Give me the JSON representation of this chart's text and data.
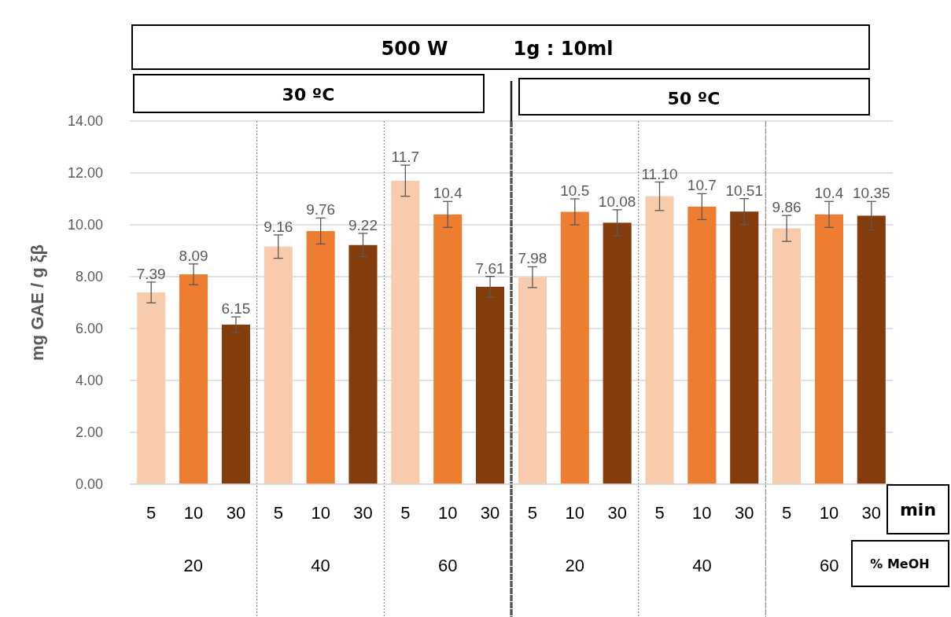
{
  "chart_data": {
    "type": "bar",
    "ylabel": "mg GAE / g ξβ",
    "categories": [
      "5",
      "10",
      "30",
      "5",
      "10",
      "30",
      "5",
      "10",
      "30",
      "5",
      "10",
      "30",
      "5",
      "10",
      "30",
      "5",
      "10",
      "30"
    ],
    "values": [
      7.39,
      8.09,
      6.15,
      9.16,
      9.76,
      9.22,
      11.7,
      10.4,
      7.61,
      7.98,
      10.5,
      10.08,
      11.1,
      10.7,
      10.51,
      9.86,
      10.4,
      10.35
    ],
    "colors": [
      "#f8cbad",
      "#ed7d31",
      "#843c0c",
      "#f8cbad",
      "#ed7d31",
      "#843c0c",
      "#f8cbad",
      "#ed7d31",
      "#843c0c",
      "#f8cbad",
      "#ed7d31",
      "#843c0c",
      "#f8cbad",
      "#ed7d31",
      "#843c0c",
      "#f8cbad",
      "#ed7d31",
      "#843c0c"
    ],
    "value_labels": [
      "7.39",
      "8.09",
      "6.15",
      "9.16",
      "9.76",
      "9.22",
      "11.7",
      "10.4",
      "7.61",
      "7.98",
      "10.5",
      "10.08",
      "11.10",
      "10.7",
      "10.51",
      "9.86",
      "10.4",
      "10.35"
    ],
    "errors": [
      0.4,
      0.4,
      0.3,
      0.45,
      0.5,
      0.45,
      0.6,
      0.5,
      0.4,
      0.4,
      0.5,
      0.5,
      0.55,
      0.5,
      0.5,
      0.5,
      0.5,
      0.55
    ],
    "ylim": [
      0,
      14
    ],
    "yticks": [
      {
        "value": 0,
        "label": "0.00"
      },
      {
        "value": 2,
        "label": "2.00"
      },
      {
        "value": 4,
        "label": "4.00"
      },
      {
        "value": 6,
        "label": "6.00"
      },
      {
        "value": 8,
        "label": "8.00"
      },
      {
        "value": 10,
        "label": "10.00"
      },
      {
        "value": 12,
        "label": "12.00"
      },
      {
        "value": 14,
        "label": "14.00"
      }
    ],
    "grid": "y",
    "annotations": [
      "500 W",
      "1g : 10ml",
      "30 ºC",
      "50 ºC",
      "min",
      "% MeOH",
      "20",
      "40",
      "60",
      "20",
      "40",
      "60"
    ]
  }
}
